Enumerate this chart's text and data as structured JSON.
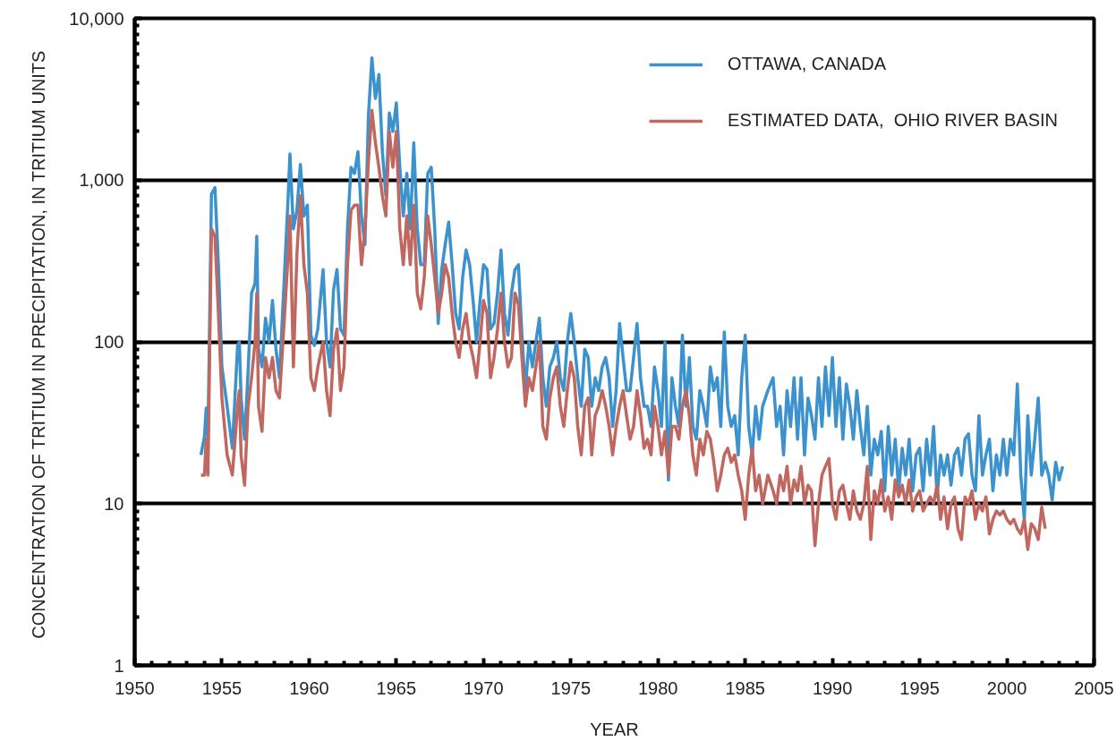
{
  "chart_data": {
    "type": "line",
    "xlabel": "YEAR",
    "ylabel": "CONCENTRATION OF TRITIUM  IN PRECIPITATION, IN TRITIUM UNITS",
    "log": "y",
    "grid": "y",
    "legend": "top right",
    "line_style": "solid",
    "marker": "none",
    "xlim": [
      1950,
      2005
    ],
    "xticks": [
      1950,
      1955,
      1960,
      1965,
      1970,
      1975,
      1980,
      1985,
      1990,
      1995,
      2000,
      2005
    ],
    "ylim": [
      1,
      10000
    ],
    "yticks": [
      1,
      10,
      100,
      {
        "value": 1000,
        "label": "1,000"
      },
      {
        "value": 10000,
        "label": "10,000"
      }
    ],
    "series": [
      {
        "name": "OTTAWA, CANADA",
        "color": "#3c92cd",
        "x": [
          1953.8,
          1954.0,
          1954.1,
          1954.2,
          1954.4,
          1954.6,
          1954.8,
          1955.0,
          1955.3,
          1955.6,
          1955.9,
          1956.0,
          1956.1,
          1956.3,
          1956.5,
          1956.7,
          1956.9,
          1957.0,
          1957.1,
          1957.3,
          1957.5,
          1957.7,
          1957.9,
          1958.1,
          1958.3,
          1958.6,
          1958.8,
          1958.9,
          1959.1,
          1959.3,
          1959.5,
          1959.7,
          1959.9,
          1960.1,
          1960.3,
          1960.5,
          1960.8,
          1961.0,
          1961.2,
          1961.4,
          1961.6,
          1961.8,
          1962.0,
          1962.2,
          1962.4,
          1962.6,
          1962.8,
          1963.0,
          1963.2,
          1963.4,
          1963.6,
          1963.8,
          1964.0,
          1964.2,
          1964.4,
          1964.6,
          1964.8,
          1965.0,
          1965.2,
          1965.4,
          1965.6,
          1965.8,
          1966.0,
          1966.2,
          1966.4,
          1966.6,
          1966.8,
          1967.0,
          1967.2,
          1967.4,
          1967.6,
          1967.8,
          1968.0,
          1968.2,
          1968.4,
          1968.6,
          1968.8,
          1969.0,
          1969.2,
          1969.4,
          1969.6,
          1969.8,
          1970.0,
          1970.2,
          1970.4,
          1970.6,
          1970.8,
          1971.0,
          1971.2,
          1971.4,
          1971.6,
          1971.8,
          1972.0,
          1972.2,
          1972.4,
          1972.6,
          1972.8,
          1973.0,
          1973.2,
          1973.4,
          1973.6,
          1973.8,
          1974.0,
          1974.2,
          1974.4,
          1974.6,
          1974.8,
          1975.0,
          1975.2,
          1975.4,
          1975.6,
          1975.8,
          1976.0,
          1976.2,
          1976.4,
          1976.6,
          1976.8,
          1977.0,
          1977.2,
          1977.4,
          1977.6,
          1977.8,
          1978.0,
          1978.2,
          1978.4,
          1978.6,
          1978.8,
          1979.0,
          1979.2,
          1979.4,
          1979.6,
          1979.8,
          1980.0,
          1980.2,
          1980.4,
          1980.6,
          1980.8,
          1981.0,
          1981.2,
          1981.4,
          1981.6,
          1981.8,
          1982.0,
          1982.2,
          1982.4,
          1982.6,
          1982.8,
          1983.0,
          1983.2,
          1983.4,
          1983.6,
          1983.8,
          1984.0,
          1984.2,
          1984.4,
          1984.6,
          1984.8,
          1985.0,
          1985.2,
          1985.4,
          1985.6,
          1985.8,
          1986.0,
          1986.3,
          1986.6,
          1986.8,
          1987.0,
          1987.2,
          1987.4,
          1987.6,
          1987.8,
          1988.0,
          1988.2,
          1988.4,
          1988.6,
          1988.8,
          1989.0,
          1989.2,
          1989.4,
          1989.6,
          1989.8,
          1990.0,
          1990.2,
          1990.4,
          1990.6,
          1990.8,
          1991.0,
          1991.2,
          1991.4,
          1991.6,
          1991.8,
          1992.0,
          1992.2,
          1992.4,
          1992.6,
          1992.8,
          1993.0,
          1993.2,
          1993.4,
          1993.6,
          1993.8,
          1994.0,
          1994.2,
          1994.4,
          1994.6,
          1994.8,
          1995.0,
          1995.2,
          1995.4,
          1995.6,
          1995.8,
          1996.0,
          1996.2,
          1996.4,
          1996.6,
          1996.8,
          1997.0,
          1997.2,
          1997.4,
          1997.6,
          1997.8,
          1998.0,
          1998.2,
          1998.4,
          1998.6,
          1998.8,
          1999.0,
          1999.2,
          1999.4,
          1999.6,
          1999.8,
          2000.0,
          2000.2,
          2000.4,
          2000.6,
          2000.8,
          2001.0,
          2001.2,
          2001.4,
          2001.6,
          2001.8,
          2002.0,
          2002.2,
          2002.4,
          2002.6,
          2002.8,
          2003.0,
          2003.2
        ],
        "values": [
          20,
          26,
          39,
          25,
          820,
          900,
          300,
          70,
          40,
          22,
          95,
          100,
          45,
          25,
          65,
          200,
          230,
          450,
          90,
          70,
          140,
          100,
          180,
          90,
          60,
          280,
          800,
          1450,
          500,
          650,
          1250,
          600,
          700,
          110,
          95,
          120,
          280,
          100,
          70,
          210,
          280,
          120,
          110,
          500,
          1200,
          1100,
          1500,
          600,
          400,
          2500,
          5700,
          3200,
          4500,
          1500,
          800,
          2600,
          2000,
          3000,
          1200,
          600,
          1100,
          500,
          1700,
          500,
          300,
          300,
          1100,
          1200,
          500,
          130,
          280,
          400,
          550,
          300,
          150,
          120,
          250,
          370,
          300,
          180,
          100,
          180,
          300,
          280,
          120,
          130,
          200,
          370,
          150,
          110,
          200,
          280,
          300,
          110,
          50,
          100,
          70,
          100,
          140,
          60,
          40,
          70,
          80,
          100,
          60,
          50,
          100,
          150,
          100,
          60,
          40,
          90,
          80,
          40,
          60,
          50,
          70,
          80,
          60,
          30,
          50,
          130,
          80,
          50,
          50,
          80,
          130,
          60,
          40,
          40,
          30,
          70,
          50,
          30,
          100,
          14,
          60,
          40,
          30,
          110,
          40,
          80,
          30,
          25,
          50,
          40,
          30,
          70,
          50,
          60,
          30,
          115,
          40,
          30,
          35,
          20,
          60,
          110,
          30,
          20,
          40,
          25,
          40,
          50,
          60,
          30,
          40,
          20,
          50,
          30,
          60,
          25,
          60,
          20,
          45,
          35,
          25,
          60,
          30,
          70,
          35,
          80,
          30,
          60,
          25,
          55,
          40,
          25,
          50,
          30,
          20,
          40,
          15,
          25,
          20,
          28,
          12,
          30,
          15,
          25,
          12,
          22,
          15,
          25,
          12,
          20,
          22,
          12,
          25,
          15,
          30,
          11,
          20,
          15,
          20,
          13,
          20,
          22,
          15,
          25,
          27,
          15,
          12,
          35,
          15,
          20,
          25,
          12,
          20,
          15,
          25,
          15,
          25,
          20,
          55,
          15,
          8,
          35,
          15,
          25,
          45,
          15,
          18,
          15,
          10.5,
          18,
          14,
          17
        ]
      },
      {
        "name": "ESTIMATED DATA,  OHIO RIVER BASIN",
        "color": "#c0675f",
        "x": [
          1953.8,
          1954.0,
          1954.1,
          1954.2,
          1954.4,
          1954.6,
          1954.8,
          1955.0,
          1955.3,
          1955.6,
          1955.9,
          1956.0,
          1956.1,
          1956.3,
          1956.5,
          1956.7,
          1956.9,
          1957.0,
          1957.1,
          1957.3,
          1957.5,
          1957.7,
          1957.9,
          1958.1,
          1958.3,
          1958.6,
          1958.8,
          1958.9,
          1959.1,
          1959.3,
          1959.5,
          1959.7,
          1959.9,
          1960.1,
          1960.3,
          1960.5,
          1960.8,
          1961.0,
          1961.2,
          1961.4,
          1961.6,
          1961.8,
          1962.0,
          1962.2,
          1962.4,
          1962.6,
          1962.8,
          1963.0,
          1963.2,
          1963.4,
          1963.6,
          1963.8,
          1964.0,
          1964.2,
          1964.4,
          1964.6,
          1964.8,
          1965.0,
          1965.2,
          1965.4,
          1965.6,
          1965.8,
          1966.0,
          1966.2,
          1966.4,
          1966.6,
          1966.8,
          1967.0,
          1967.2,
          1967.4,
          1967.6,
          1967.8,
          1968.0,
          1968.2,
          1968.4,
          1968.6,
          1968.8,
          1969.0,
          1969.2,
          1969.4,
          1969.6,
          1969.8,
          1970.0,
          1970.2,
          1970.4,
          1970.6,
          1970.8,
          1971.0,
          1971.2,
          1971.4,
          1971.6,
          1971.8,
          1972.0,
          1972.2,
          1972.4,
          1972.6,
          1972.8,
          1973.0,
          1973.2,
          1973.4,
          1973.6,
          1973.8,
          1974.0,
          1974.2,
          1974.4,
          1974.6,
          1974.8,
          1975.0,
          1975.2,
          1975.4,
          1975.6,
          1975.8,
          1976.0,
          1976.2,
          1976.4,
          1976.6,
          1976.8,
          1977.0,
          1977.2,
          1977.4,
          1977.6,
          1977.8,
          1978.0,
          1978.2,
          1978.4,
          1978.6,
          1978.8,
          1979.0,
          1979.2,
          1979.4,
          1979.6,
          1979.8,
          1980.0,
          1980.2,
          1980.4,
          1980.6,
          1980.8,
          1981.0,
          1981.2,
          1981.4,
          1981.6,
          1981.8,
          1982.0,
          1982.2,
          1982.4,
          1982.6,
          1982.8,
          1983.0,
          1983.2,
          1983.4,
          1983.6,
          1983.8,
          1984.0,
          1984.2,
          1984.4,
          1984.6,
          1984.8,
          1985.0,
          1985.2,
          1985.4,
          1985.6,
          1985.8,
          1986.0,
          1986.3,
          1986.6,
          1986.8,
          1987.0,
          1987.2,
          1987.4,
          1987.6,
          1987.8,
          1988.0,
          1988.2,
          1988.4,
          1988.6,
          1988.8,
          1989.0,
          1989.2,
          1989.4,
          1989.6,
          1989.8,
          1990.0,
          1990.2,
          1990.4,
          1990.6,
          1990.8,
          1991.0,
          1991.2,
          1991.4,
          1991.6,
          1991.8,
          1992.0,
          1992.2,
          1992.4,
          1992.6,
          1992.8,
          1993.0,
          1993.2,
          1993.4,
          1993.6,
          1993.8,
          1994.0,
          1994.2,
          1994.4,
          1994.6,
          1994.8,
          1995.0,
          1995.2,
          1995.4,
          1995.6,
          1995.8,
          1996.0,
          1996.2,
          1996.4,
          1996.6,
          1996.8,
          1997.0,
          1997.2,
          1997.4,
          1997.6,
          1997.8,
          1998.0,
          1998.2,
          1998.4,
          1998.6,
          1998.8,
          1999.0,
          1999.2,
          1999.4,
          1999.6,
          1999.8,
          2000.0,
          2000.2,
          2000.4,
          2000.6,
          2000.8,
          2001.0,
          2001.2,
          2001.4,
          2001.6,
          2001.8,
          2002.0,
          2002.2
        ],
        "values": [
          15,
          15,
          25,
          15,
          500,
          450,
          150,
          45,
          20,
          15,
          40,
          50,
          20,
          13,
          40,
          60,
          100,
          200,
          40,
          28,
          80,
          60,
          80,
          50,
          45,
          150,
          350,
          600,
          70,
          350,
          800,
          300,
          200,
          60,
          50,
          70,
          100,
          50,
          35,
          90,
          120,
          50,
          70,
          300,
          650,
          700,
          700,
          300,
          500,
          1300,
          2700,
          1700,
          1200,
          800,
          600,
          2000,
          1200,
          2000,
          500,
          300,
          600,
          300,
          700,
          200,
          160,
          250,
          600,
          400,
          250,
          150,
          200,
          300,
          250,
          150,
          100,
          80,
          120,
          150,
          100,
          80,
          60,
          100,
          180,
          150,
          60,
          80,
          120,
          200,
          100,
          70,
          80,
          200,
          170,
          80,
          40,
          60,
          50,
          70,
          100,
          30,
          25,
          45,
          60,
          70,
          40,
          30,
          50,
          75,
          60,
          30,
          20,
          40,
          45,
          20,
          35,
          40,
          50,
          40,
          30,
          20,
          30,
          40,
          50,
          35,
          25,
          30,
          50,
          35,
          22,
          25,
          20,
          40,
          30,
          20,
          28,
          15,
          30,
          30,
          25,
          40,
          50,
          35,
          20,
          15,
          25,
          20,
          28,
          25,
          18,
          12,
          15,
          20,
          22,
          18,
          20,
          15,
          12,
          8,
          15,
          22,
          12,
          15,
          10,
          15,
          12,
          10,
          15,
          12,
          17,
          10,
          14,
          12,
          17,
          10,
          13,
          12,
          5.5,
          10,
          15,
          17,
          19,
          10,
          8,
          12,
          13,
          10,
          8,
          12,
          9,
          8,
          10,
          17,
          6,
          12,
          10,
          14,
          9,
          11,
          8,
          14,
          11,
          13,
          10,
          14,
          9,
          11,
          12,
          9,
          10,
          11,
          10,
          13,
          8,
          11,
          7,
          10,
          11,
          7,
          6,
          11,
          10,
          12,
          8,
          10,
          9,
          11,
          6.5,
          8,
          9,
          8.5,
          9,
          8,
          7.5,
          8,
          7,
          6.5,
          8,
          5.2,
          7.5,
          7,
          6,
          9.5,
          7
        ]
      }
    ]
  }
}
